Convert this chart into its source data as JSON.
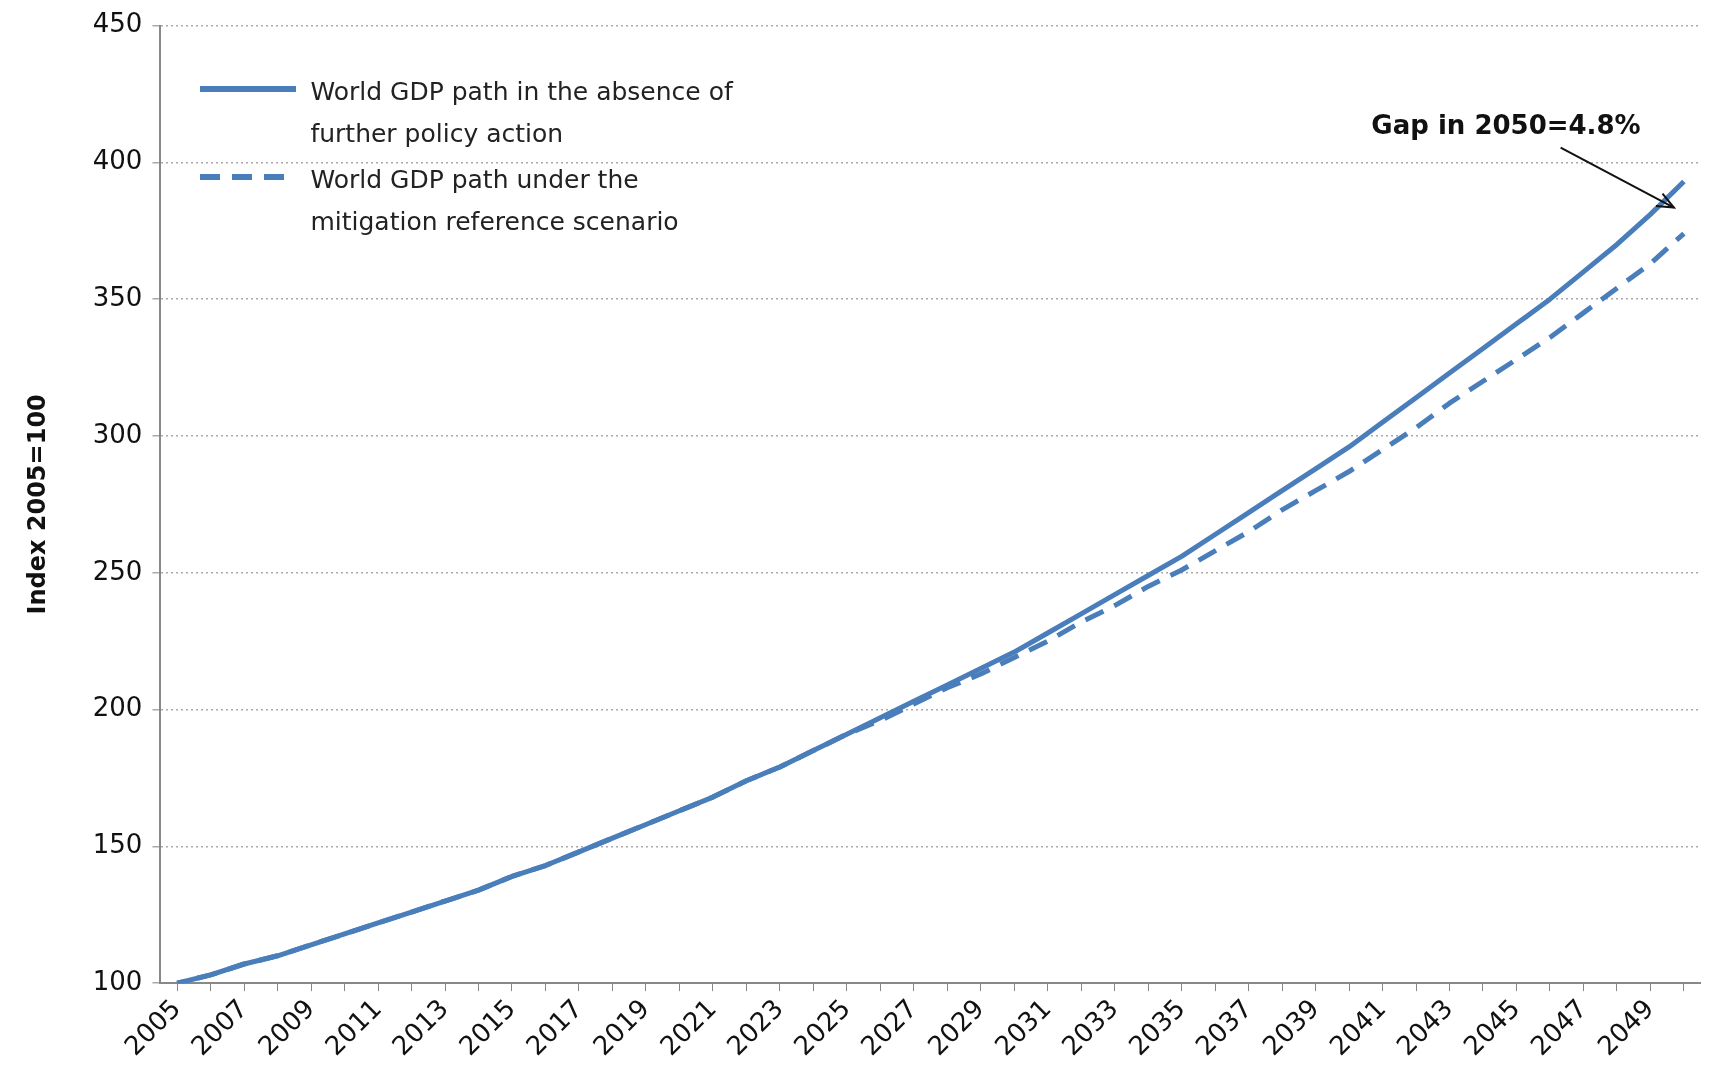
{
  "chart_data": {
    "type": "line",
    "ylabel": "Index 2005=100",
    "categories": [
      "2005",
      null,
      "2007",
      null,
      "2009",
      null,
      "2011",
      null,
      "2013",
      null,
      "2015",
      null,
      "2017",
      null,
      "2019",
      null,
      "2021",
      null,
      "2023",
      null,
      "2025",
      null,
      "2027",
      null,
      "2029",
      null,
      "2031",
      null,
      "2033",
      null,
      "2035",
      null,
      "2037",
      null,
      "2039",
      null,
      "2041",
      null,
      "2043",
      null,
      "2045",
      null,
      "2047",
      null,
      "2049",
      null
    ],
    "series": [
      {
        "name": "World GDP path in the absence of further policy action",
        "color": "#4a7ebb",
        "line_style": "solid",
        "values": [
          100,
          103,
          107,
          110,
          114,
          118,
          122,
          126,
          130,
          134,
          139,
          143,
          148,
          153,
          158,
          163,
          168,
          174,
          179,
          185,
          191,
          197,
          203,
          209,
          215,
          221,
          228,
          235,
          242,
          249,
          256,
          264,
          272,
          280,
          288,
          296,
          305,
          314,
          323,
          332,
          341,
          350,
          360,
          370,
          381,
          393
        ]
      },
      {
        "name": "World GDP path under the mitigation reference scenario",
        "color": "#4a7ebb",
        "line_style": "dashed",
        "values": [
          100,
          103,
          107,
          110,
          114,
          118,
          122,
          126,
          130,
          134,
          139,
          143,
          148,
          153,
          158,
          163,
          168,
          174,
          179,
          185,
          191,
          196,
          202,
          208,
          213,
          219,
          225,
          232,
          238,
          245,
          251,
          258,
          265,
          273,
          280,
          287,
          295,
          303,
          312,
          320,
          328,
          336,
          345,
          354,
          363,
          374
        ]
      }
    ],
    "ylim": [
      100,
      450
    ],
    "yticks": [
      100,
      150,
      200,
      250,
      300,
      350,
      400,
      450
    ],
    "grid": "y",
    "legend": "top left",
    "marker": "none",
    "annotations": [
      "Gap in 2050=4.8%"
    ]
  }
}
